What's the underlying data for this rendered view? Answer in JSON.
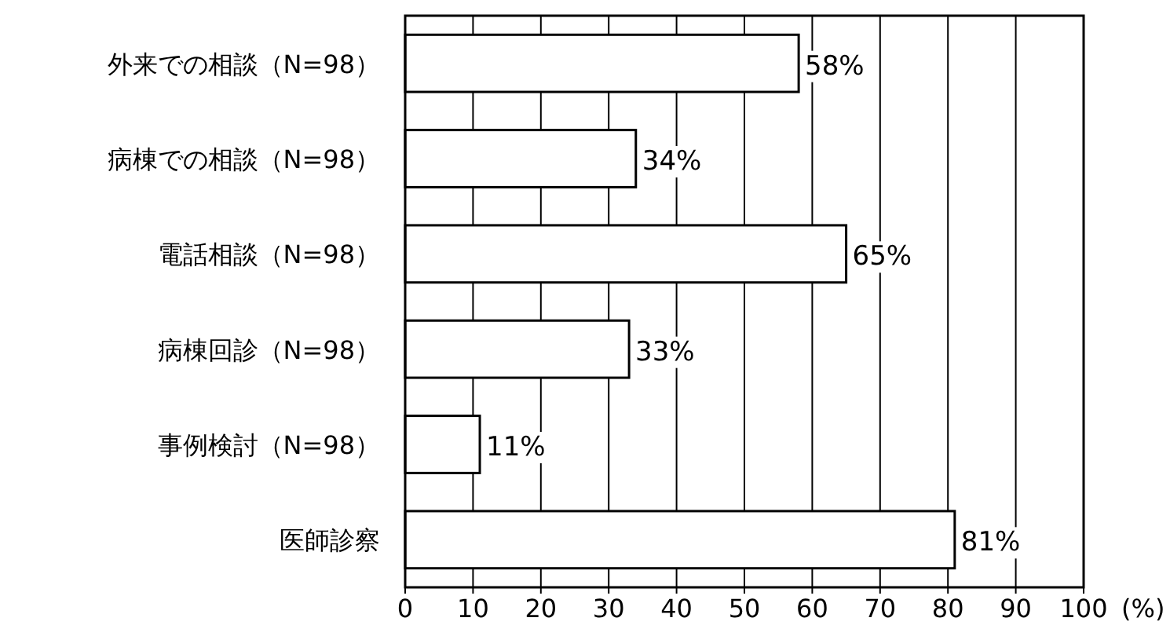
{
  "chart_data": {
    "type": "bar",
    "orientation": "horizontal",
    "categories": [
      "外来での相談（N=98）",
      "病棟での相談（N=98）",
      "電話相談（N=98）",
      "病棟回診（N=98）",
      "事例検討（N=98）",
      "医師診察"
    ],
    "values": [
      58,
      34,
      65,
      33,
      11,
      81
    ],
    "value_labels": [
      "58%",
      "34%",
      "65%",
      "33%",
      "11%",
      "81%"
    ],
    "color": "#ffffff",
    "xlim": [
      0,
      100
    ],
    "xticks": [
      0,
      10,
      20,
      30,
      40,
      50,
      60,
      70,
      80,
      90,
      100
    ],
    "xlabel": "(%)",
    "grid": "x"
  }
}
